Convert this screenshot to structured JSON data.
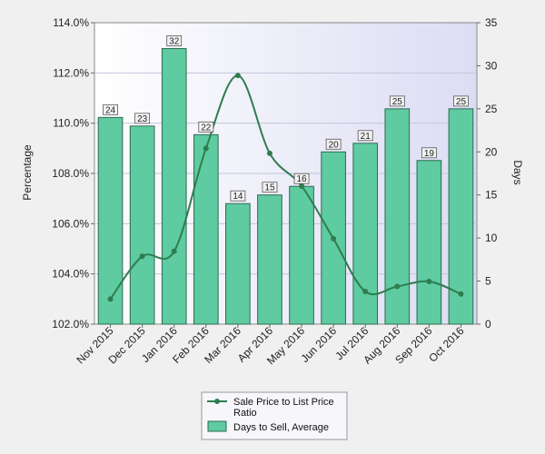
{
  "chart_data": {
    "type": "bar",
    "categories": [
      "Nov 2015",
      "Dec 2015",
      "Jan 2016",
      "Feb 2016",
      "Mar 2016",
      "Apr 2016",
      "May 2016",
      "Jun 2016",
      "Jul 2016",
      "Aug 2016",
      "Sep 2016",
      "Oct 2016"
    ],
    "series": [
      {
        "name": "Days to Sell, Average",
        "type": "bar",
        "axis": "right",
        "color": "#5ecba1",
        "values": [
          24,
          23,
          32,
          22,
          14,
          15,
          16,
          20,
          21,
          25,
          19,
          25
        ]
      },
      {
        "name": "Sale Price to List Price Ratio",
        "type": "line",
        "axis": "left",
        "color": "#2e7d4f",
        "values": [
          103.0,
          104.7,
          104.9,
          109.0,
          111.9,
          108.8,
          107.5,
          105.4,
          103.3,
          103.5,
          103.7,
          103.2
        ]
      }
    ],
    "yleft": {
      "label": "Percentage",
      "min": 102,
      "max": 114,
      "ticks": [
        "102.0%",
        "104.0%",
        "106.0%",
        "108.0%",
        "110.0%",
        "112.0%",
        "114.0%"
      ]
    },
    "yright": {
      "label": "Days",
      "min": 0,
      "max": 35,
      "ticks": [
        "0",
        "5",
        "10",
        "15",
        "20",
        "25",
        "30",
        "35"
      ]
    },
    "grid": true,
    "legend_position": "bottom",
    "plot_background": "#e4e4f7"
  }
}
